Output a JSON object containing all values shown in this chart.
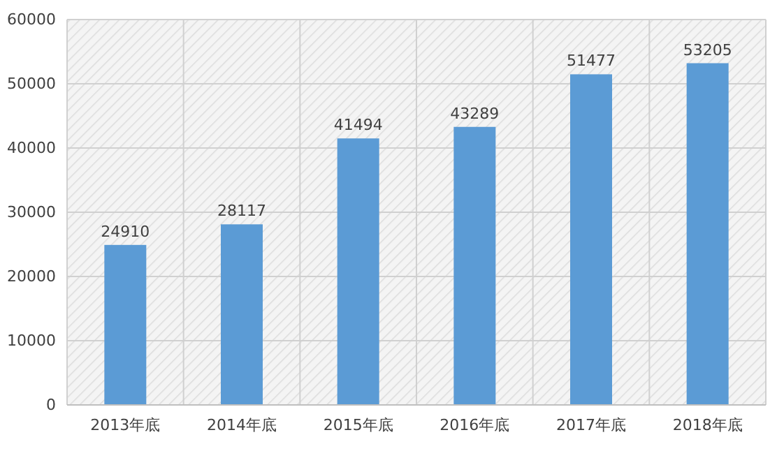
{
  "chart_data": {
    "type": "bar",
    "categories": [
      "2013年底",
      "2014年底",
      "2015年底",
      "2016年底",
      "2017年底",
      "2018年底"
    ],
    "values": [
      24910,
      28117,
      41494,
      43289,
      51477,
      53205
    ],
    "color": "#5b9bd5",
    "ylim": [
      0,
      60000
    ],
    "yticks": [
      0,
      10000,
      20000,
      30000,
      40000,
      50000,
      60000
    ],
    "grid": true,
    "data_labels": true
  }
}
